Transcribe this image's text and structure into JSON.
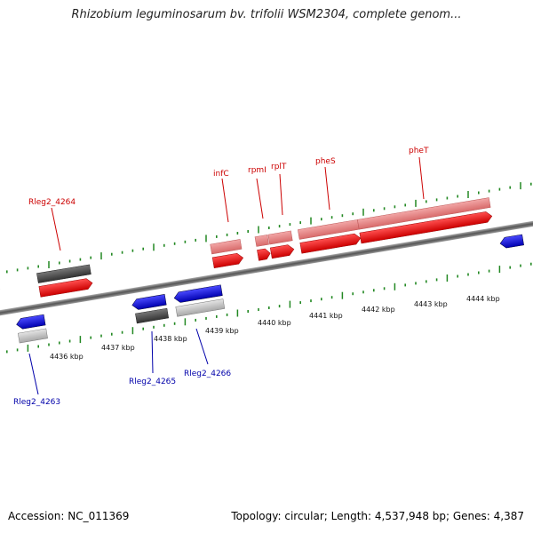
{
  "title": "Rhizobium leguminosarum bv. trifolii WSM2304, complete genom...",
  "footer": {
    "accession": "Accession: NC_011369",
    "summary": "Topology: circular; Length: 4,537,948 bp; Genes: 4,387"
  },
  "colors": {
    "forward_strand": "#ff0000",
    "forward_pseudo": "#e88a8a",
    "reverse_strand": "#0000ee",
    "dark_gene": "#555555",
    "light_gene": "#c8c8c8",
    "tick": "#228822",
    "forward_label": "#cc0000",
    "reverse_label": "#0000aa"
  },
  "gene_labels": {
    "forward": [
      "Rleg2_4264",
      "infC",
      "rpmI",
      "rplT",
      "pheS",
      "pheT"
    ],
    "reverse": [
      "Rleg2_4263",
      "Rleg2_4265",
      "Rleg2_4266"
    ]
  },
  "kbp_labels": [
    "4436 kbp",
    "4437 kbp",
    "4438 kbp",
    "4439 kbp",
    "4440 kbp",
    "4441 kbp",
    "4442 kbp",
    "4443 kbp",
    "4444 kbp"
  ]
}
